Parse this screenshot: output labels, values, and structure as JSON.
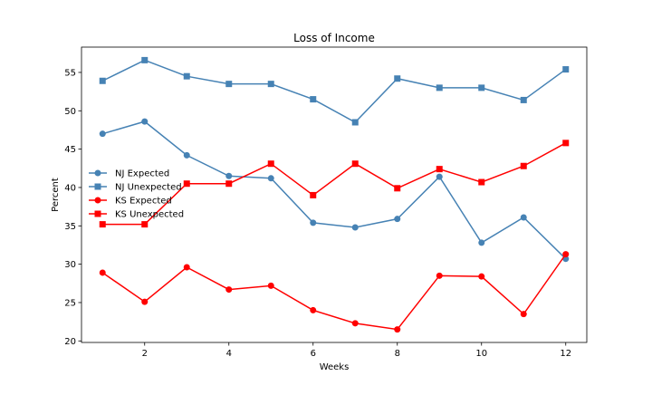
{
  "chart_data": {
    "type": "line",
    "title": "Loss of Income",
    "xlabel": "Weeks",
    "ylabel": "Percent",
    "xlim": [
      0.5,
      12.5
    ],
    "ylim": [
      19.8,
      58.3
    ],
    "xticks": [
      2,
      4,
      6,
      8,
      10,
      12
    ],
    "yticks": [
      20,
      25,
      30,
      35,
      40,
      45,
      50,
      55
    ],
    "grid": false,
    "legend_position": "center-left",
    "x": [
      1,
      2,
      3,
      4,
      5,
      6,
      7,
      8,
      9,
      10,
      11,
      12
    ],
    "series": [
      {
        "name": "NJ Expected",
        "color": "#4682b4",
        "marker": "circle",
        "values": [
          47.0,
          48.6,
          44.2,
          41.5,
          41.2,
          35.4,
          34.8,
          35.9,
          41.4,
          32.8,
          36.1,
          30.7
        ]
      },
      {
        "name": "NJ Unexpected",
        "color": "#4682b4",
        "marker": "square",
        "values": [
          53.9,
          56.6,
          54.5,
          53.5,
          53.5,
          51.5,
          48.5,
          54.2,
          53.0,
          53.0,
          51.4,
          55.4
        ]
      },
      {
        "name": "KS Expected",
        "color": "#ff0000",
        "marker": "circle",
        "values": [
          28.9,
          25.1,
          29.6,
          26.7,
          27.2,
          24.0,
          22.3,
          21.5,
          28.5,
          28.4,
          23.5,
          31.3
        ]
      },
      {
        "name": "KS Unexpected",
        "color": "#ff0000",
        "marker": "square",
        "values": [
          35.2,
          35.2,
          40.5,
          40.5,
          43.1,
          39.0,
          43.1,
          39.9,
          42.4,
          40.7,
          42.8,
          45.8
        ]
      }
    ]
  }
}
